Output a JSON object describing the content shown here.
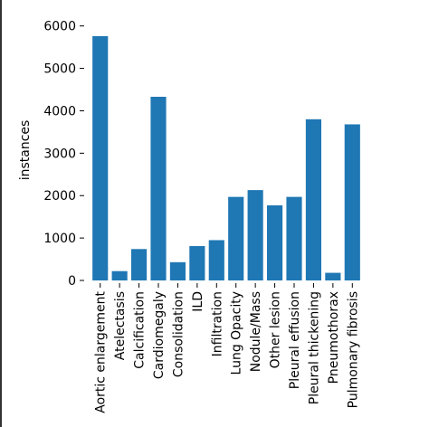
{
  "chart_data": {
    "type": "bar",
    "ylabel": "instances",
    "xlabel": "",
    "title": "",
    "ylim": [
      0,
      6100
    ],
    "yticks": [
      0,
      1000,
      2000,
      3000,
      4000,
      5000,
      6000
    ],
    "bar_color": "#1f77b4",
    "categories": [
      "Aortic enlargement",
      "Atelectasis",
      "Calcification",
      "Cardiomegaly",
      "Consolidation",
      "ILD",
      "Infiltration",
      "Lung Opacity",
      "Nodule/Mass",
      "Other lesion",
      "Pleural effusion",
      "Pleural thickening",
      "Pneumothorax",
      "Pulmonary fibrosis"
    ],
    "values": [
      5760,
      220,
      740,
      4330,
      430,
      810,
      950,
      1970,
      2130,
      1770,
      1970,
      3800,
      180,
      3680
    ]
  }
}
